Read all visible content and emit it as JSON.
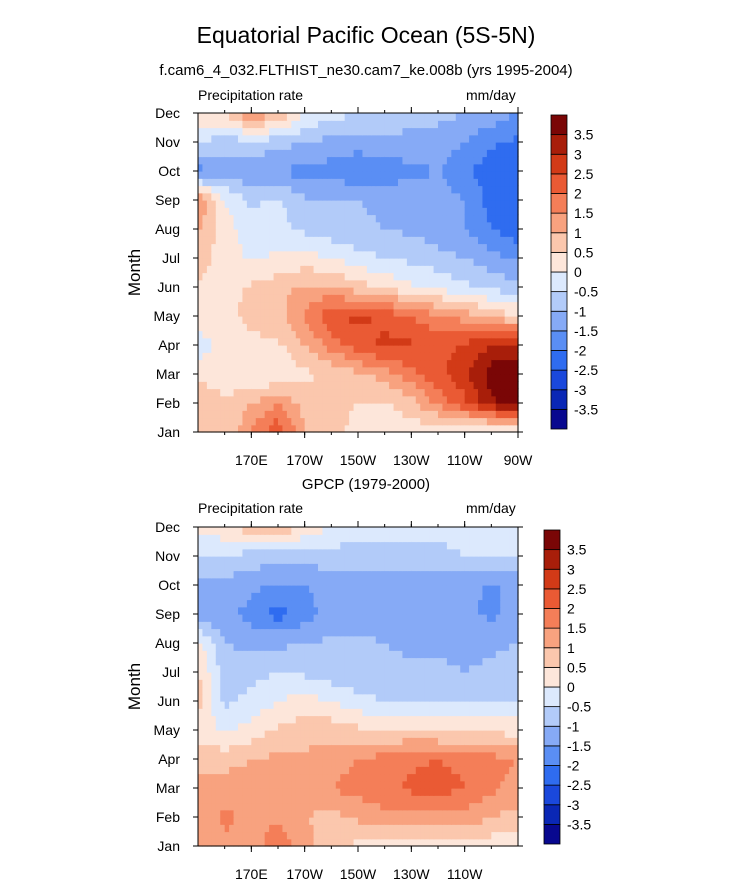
{
  "title": "Equatorial Pacific Ocean (5S-5N)",
  "colors": {
    "scale": [
      "#08088f",
      "#0a27b5",
      "#1a48dc",
      "#2f6cf0",
      "#5a8ef4",
      "#86aaf6",
      "#b2cbf9",
      "#dce9fd",
      "#fde6da",
      "#fbc7ad",
      "#f8a27f",
      "#f47e58",
      "#ea5a34",
      "#d23a17",
      "#a81e0a",
      "#7a0606"
    ]
  },
  "chart_data": [
    {
      "type": "heatmap",
      "panel_title": "f.cam6_4_032.FLTHIST_ne30.cam7_ke.008b (yrs 1995-2004)",
      "variable_label": "Precipitation rate",
      "units": "mm/day",
      "ylabel": "Month",
      "y_ticks": [
        "Jan",
        "Feb",
        "Mar",
        "Apr",
        "May",
        "Jun",
        "Jul",
        "Aug",
        "Sep",
        "Oct",
        "Nov",
        "Dec"
      ],
      "x_ticks": [
        "170E",
        "170W",
        "150W",
        "130W",
        "110W",
        "90W"
      ],
      "x_tick_lon": [
        170,
        190,
        210,
        230,
        250,
        270
      ],
      "xlim": [
        150,
        270
      ],
      "colorbar_labels": [
        "3.5",
        "3",
        "2.5",
        "2",
        "1.5",
        "1",
        "0.5",
        "0",
        "-0.5",
        "-1",
        "-1.5",
        "-2",
        "-2.5",
        "-3",
        "-3.5"
      ],
      "grid_lon": [
        150,
        160,
        170,
        180,
        190,
        200,
        210,
        220,
        230,
        240,
        250,
        260,
        270
      ],
      "values": [
        [
          0.8,
          0.5,
          1.5,
          2.4,
          1.0,
          0.6,
          0.4,
          0.3,
          0.2,
          0.1,
          -0.2,
          -0.4,
          -0.5
        ],
        [
          1.0,
          0.6,
          1.0,
          1.5,
          0.8,
          0.6,
          0.5,
          0.4,
          0.8,
          1.6,
          2.4,
          3.4,
          3.8
        ],
        [
          0.3,
          0.2,
          0.0,
          0.0,
          0.4,
          0.6,
          0.9,
          1.2,
          1.8,
          2.4,
          2.8,
          3.8,
          4.0
        ],
        [
          -0.3,
          0.3,
          0.4,
          0.4,
          1.0,
          1.7,
          2.3,
          2.6,
          2.6,
          2.3,
          2.6,
          3.0,
          3.2
        ],
        [
          0.2,
          0.4,
          0.6,
          0.8,
          1.6,
          2.4,
          2.6,
          2.4,
          2.0,
          1.6,
          1.3,
          0.9,
          0.5
        ],
        [
          0.4,
          0.3,
          0.6,
          0.8,
          1.1,
          1.1,
          0.7,
          0.4,
          0.1,
          -0.1,
          -0.4,
          -0.6,
          -0.9
        ],
        [
          0.8,
          0.2,
          -0.1,
          0.1,
          0.2,
          0.0,
          -0.3,
          -0.5,
          -0.6,
          -0.8,
          -1.0,
          -1.3,
          -1.6
        ],
        [
          1.1,
          0.2,
          -0.2,
          -0.4,
          -0.6,
          -0.8,
          -0.9,
          -1.0,
          -1.1,
          -1.3,
          -1.5,
          -2.0,
          -2.3
        ],
        [
          1.6,
          0.0,
          -0.6,
          -0.4,
          -0.9,
          -1.0,
          -1.0,
          -1.1,
          -1.2,
          -1.3,
          -1.5,
          -2.2,
          -2.5
        ],
        [
          -1.7,
          -1.2,
          -1.5,
          -1.5,
          -1.7,
          -1.7,
          -1.9,
          -1.8,
          -1.6,
          -1.5,
          -1.8,
          -2.4,
          -2.3
        ],
        [
          -0.5,
          -0.8,
          -0.6,
          -0.8,
          -1.0,
          -1.2,
          -1.3,
          -1.2,
          -1.2,
          -1.3,
          -1.5,
          -1.9,
          -2.1
        ],
        [
          0.3,
          0.6,
          1.5,
          1.0,
          0.0,
          -0.3,
          -0.5,
          -0.6,
          -0.7,
          -0.8,
          -1.0,
          -1.2,
          -1.5
        ]
      ]
    },
    {
      "type": "heatmap",
      "panel_title": "GPCP (1979-2000)",
      "variable_label": "Precipitation rate",
      "units": "mm/day",
      "ylabel": "Month",
      "y_ticks": [
        "Jan",
        "Feb",
        "Mar",
        "Apr",
        "May",
        "Jun",
        "Jul",
        "Aug",
        "Sep",
        "Oct",
        "Nov",
        "Dec"
      ],
      "x_ticks": [
        "170E",
        "170W",
        "150W",
        "130W",
        "110W"
      ],
      "x_tick_lon": [
        170,
        190,
        210,
        230,
        250
      ],
      "xlim": [
        150,
        270
      ],
      "colorbar_labels": [
        "3.5",
        "3",
        "2.5",
        "2",
        "1.5",
        "1",
        "0.5",
        "0",
        "-0.5",
        "-1",
        "-1.5",
        "-2",
        "-2.5",
        "-3",
        "-3.5"
      ],
      "grid_lon": [
        150,
        160,
        170,
        180,
        190,
        200,
        210,
        220,
        230,
        240,
        250,
        260,
        270
      ],
      "values": [
        [
          1.2,
          1.4,
          1.3,
          1.8,
          1.3,
          0.6,
          0.4,
          0.3,
          0.3,
          0.3,
          0.2,
          0.2,
          0.1
        ],
        [
          1.0,
          1.6,
          1.4,
          1.4,
          1.0,
          0.8,
          1.1,
          1.3,
          1.4,
          1.4,
          1.3,
          1.0,
          0.8
        ],
        [
          1.2,
          1.3,
          1.3,
          1.2,
          1.3,
          1.5,
          1.7,
          1.9,
          2.1,
          2.2,
          2.0,
          1.6,
          1.3
        ],
        [
          0.8,
          0.8,
          1.0,
          1.1,
          1.1,
          1.3,
          1.5,
          1.7,
          1.9,
          2.0,
          1.9,
          1.7,
          1.5
        ],
        [
          0.3,
          -0.1,
          0.2,
          0.6,
          0.8,
          0.8,
          0.6,
          0.5,
          0.5,
          0.4,
          0.4,
          0.4,
          0.3
        ],
        [
          0.7,
          -0.6,
          -0.3,
          0.0,
          0.2,
          0.0,
          -0.3,
          -0.5,
          -0.6,
          -0.6,
          -0.6,
          -0.6,
          -0.5
        ],
        [
          0.6,
          -0.8,
          -0.7,
          -0.5,
          -0.6,
          -0.8,
          -0.9,
          -0.9,
          -0.9,
          -0.9,
          -1.0,
          -0.9,
          -0.8
        ],
        [
          0.2,
          -1.0,
          -1.1,
          -1.1,
          -1.0,
          -0.9,
          -0.9,
          -1.0,
          -1.1,
          -1.1,
          -1.2,
          -1.1,
          -1.0
        ],
        [
          -1.5,
          -1.3,
          -1.7,
          -2.2,
          -1.7,
          -1.3,
          -1.2,
          -1.3,
          -1.3,
          -1.3,
          -1.4,
          -1.6,
          -1.2
        ],
        [
          -1.2,
          -1.1,
          -1.4,
          -1.6,
          -1.5,
          -1.3,
          -1.3,
          -1.3,
          -1.3,
          -1.3,
          -1.3,
          -1.6,
          -1.3
        ],
        [
          -0.5,
          -0.6,
          -0.7,
          -0.8,
          -0.8,
          -0.7,
          -0.7,
          -0.6,
          -0.6,
          -0.6,
          -0.5,
          -0.5,
          -0.5
        ],
        [
          0.1,
          0.4,
          0.8,
          0.9,
          0.4,
          -0.1,
          -0.3,
          -0.4,
          -0.4,
          -0.4,
          -0.4,
          -0.3,
          -0.3
        ]
      ]
    }
  ]
}
